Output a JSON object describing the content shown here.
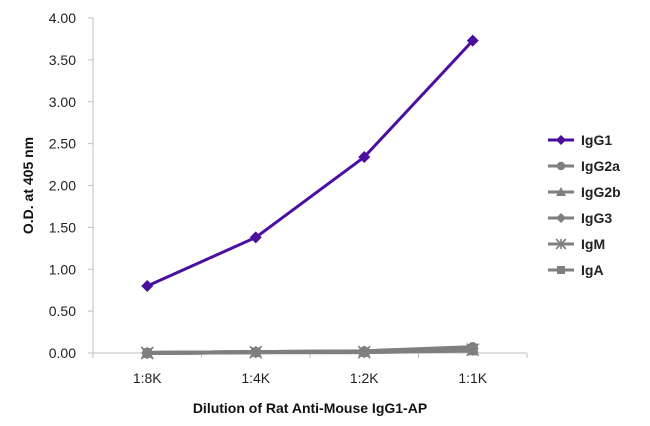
{
  "chart_data": {
    "type": "line",
    "title": "",
    "xlabel": "Dilution of Rat Anti-Mouse IgG1-AP",
    "ylabel": "O.D. at 405 nm",
    "categories": [
      "1:8K",
      "1:4K",
      "1:2K",
      "1:1K"
    ],
    "ylim": [
      0,
      4
    ],
    "yticks": [
      "0.00",
      "0.50",
      "1.00",
      "1.50",
      "2.00",
      "2.50",
      "3.00",
      "3.50",
      "4.00"
    ],
    "grid": false,
    "legend_position": "right",
    "series": [
      {
        "name": "IgG1",
        "values": [
          0.8,
          1.38,
          2.34,
          3.73
        ],
        "color": "#4b0fa0",
        "marker": "diamond"
      },
      {
        "name": "IgG2a",
        "values": [
          0.0,
          0.01,
          0.02,
          0.07
        ],
        "color": "#7f7f7f",
        "marker": "circle"
      },
      {
        "name": "IgG2b",
        "values": [
          0.0,
          0.01,
          0.02,
          0.06
        ],
        "color": "#7f7f7f",
        "marker": "triangle"
      },
      {
        "name": "IgG3",
        "values": [
          0.0,
          0.01,
          0.02,
          0.05
        ],
        "color": "#7f7f7f",
        "marker": "diamond"
      },
      {
        "name": "IgM",
        "values": [
          0.0,
          0.01,
          0.01,
          0.04
        ],
        "color": "#7f7f7f",
        "marker": "star"
      },
      {
        "name": "IgA",
        "values": [
          0.0,
          0.01,
          0.01,
          0.03
        ],
        "color": "#7f7f7f",
        "marker": "square"
      }
    ]
  }
}
